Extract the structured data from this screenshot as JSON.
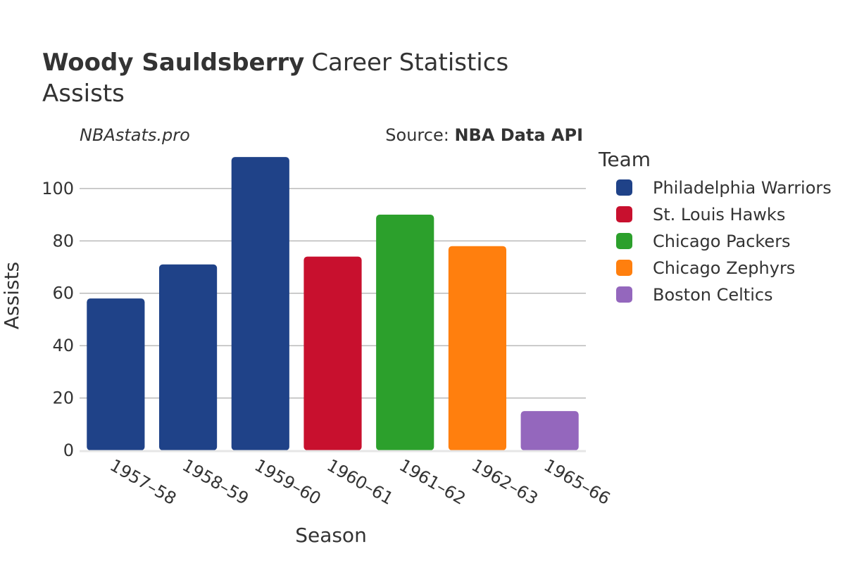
{
  "chart_data": {
    "type": "bar",
    "title_bold": "Woody Sauldsberry",
    "title_rest": "Career Statistics",
    "subtitle": "Assists",
    "watermark": "NBAstats.pro",
    "source_prefix": "Source: ",
    "source_name": "NBA Data API",
    "xlabel": "Season",
    "ylabel": "Assists",
    "ylim": [
      0,
      115
    ],
    "yticks": [
      0,
      20,
      40,
      60,
      80,
      100
    ],
    "categories": [
      "1957–58",
      "1958–59",
      "1959–60",
      "1960–61",
      "1961–62",
      "1962–63",
      "1965–66"
    ],
    "values": [
      58,
      71,
      112,
      74,
      90,
      78,
      15
    ],
    "teams": [
      "Philadelphia Warriors",
      "Philadelphia Warriors",
      "Philadelphia Warriors",
      "St. Louis Hawks",
      "Chicago Packers",
      "Chicago Zephyrs",
      "Boston Celtics"
    ],
    "legend_title": "Team",
    "legend": [
      {
        "name": "Philadelphia Warriors",
        "color": "#1f4288"
      },
      {
        "name": "St. Louis Hawks",
        "color": "#c8102e"
      },
      {
        "name": "Chicago Packers",
        "color": "#2ca02c"
      },
      {
        "name": "Chicago Zephyrs",
        "color": "#ff7f0e"
      },
      {
        "name": "Boston Celtics",
        "color": "#9467bd"
      }
    ]
  }
}
